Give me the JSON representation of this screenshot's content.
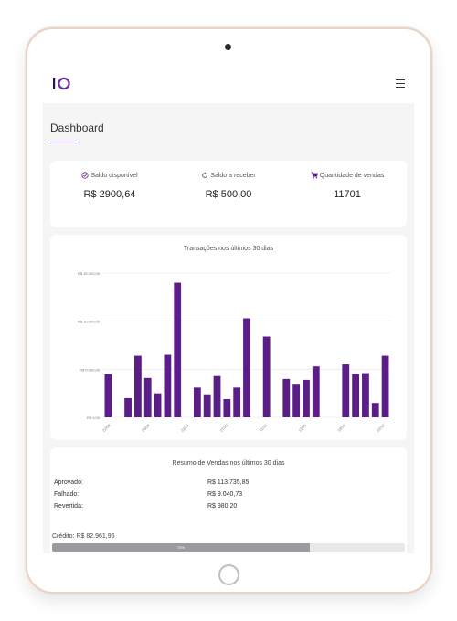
{
  "header": {
    "title": "Dashboard"
  },
  "stats": [
    {
      "label": "Saldo disponível",
      "value": "R$ 2900,64",
      "icon": "check-circle-icon"
    },
    {
      "label": "Saldo a receber",
      "value": "R$ 500,00",
      "icon": "refresh-icon"
    },
    {
      "label": "Quantidade de vendas",
      "value": "11701",
      "icon": "cart-icon"
    }
  ],
  "colors": {
    "accent": "#5b1e87",
    "underline": "#7a3fb3"
  },
  "chart_title": "Transações nos últimos 30 dias",
  "chart_data": {
    "type": "bar",
    "title": "Transações nos últimos 30 dias",
    "ylim": [
      0,
      15000
    ],
    "y_ticks": [
      "R$ 0,00",
      "R$ 5.000,00",
      "R$ 10.000,00",
      "R$ 15.000,00"
    ],
    "x_tick_labels": [
      "22/09",
      "25/09",
      "02/10",
      "07/10",
      "11/10",
      "13/10",
      "19/10",
      "22/10"
    ],
    "values": [
      4500,
      0,
      2000,
      6400,
      4100,
      2500,
      6500,
      14000,
      0,
      3100,
      2400,
      4300,
      1900,
      3100,
      10300,
      0,
      8400,
      0,
      4000,
      3400,
      3900,
      5300,
      0,
      0,
      5500,
      4500,
      4600,
      1500,
      6400
    ],
    "color": "#5b1e87",
    "grid": true
  },
  "summary": {
    "title": "Resumo de Vendas nos últimos 30 dias",
    "rows": [
      {
        "label": "Aprovado:",
        "value": "R$ 113.735,85"
      },
      {
        "label": "Falhado:",
        "value": "R$ 9.040,73"
      },
      {
        "label": "Revertida:",
        "value": "R$ 980,20"
      }
    ],
    "credit_label": "Crédito: R$ 82.961,96",
    "credit_progress_label": "73%",
    "credit_progress": 0.73
  }
}
